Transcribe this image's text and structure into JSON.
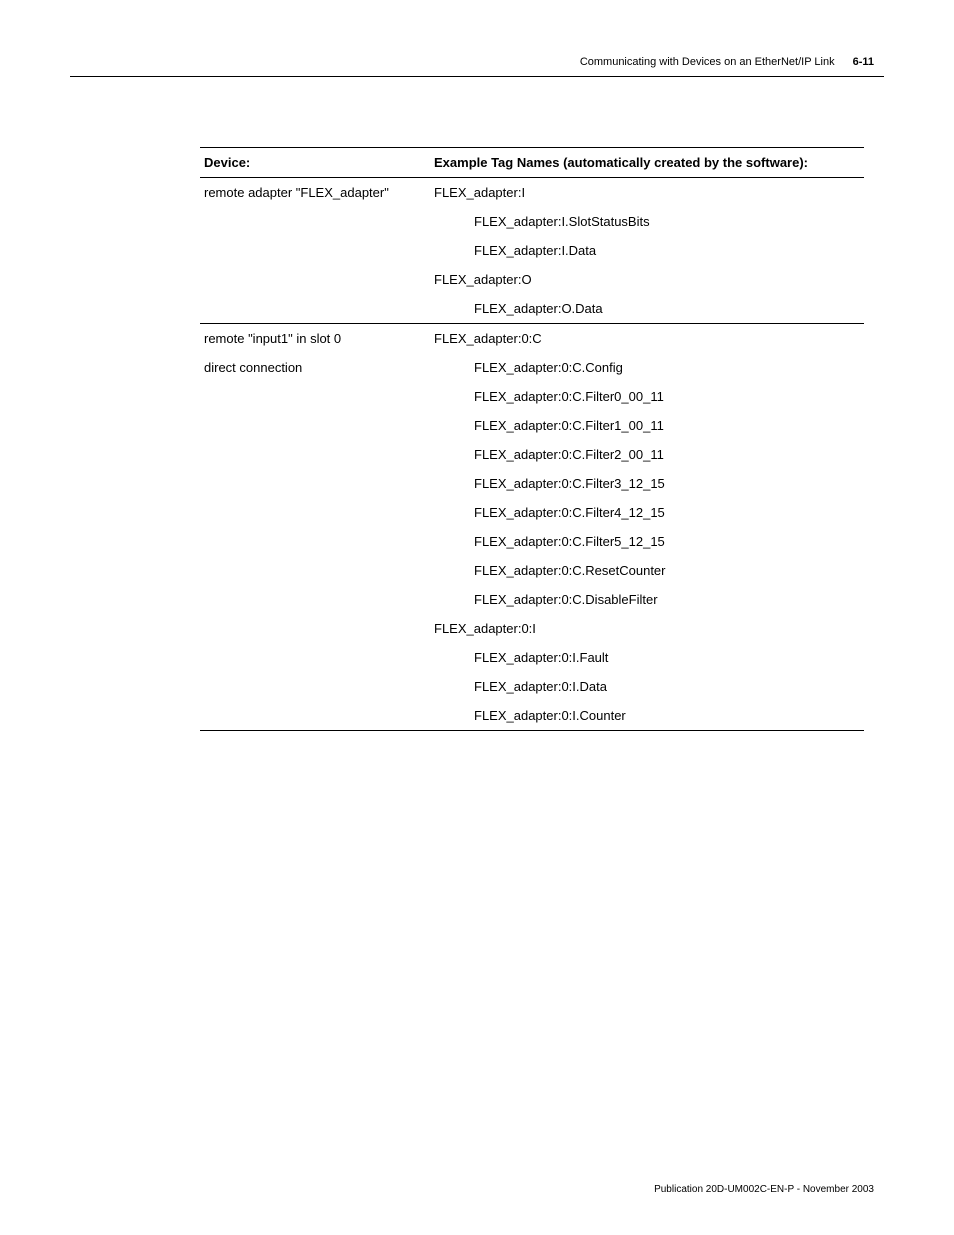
{
  "header": {
    "title": "Communicating with Devices on an EtherNet/IP Link",
    "page": "6-11"
  },
  "table": {
    "headers": {
      "device": "Device:",
      "tags": "Example Tag Names (automatically created by the software):"
    },
    "sections": [
      {
        "device_lines": [
          "remote adapter \"FLEX_adapter\""
        ],
        "tags": [
          {
            "text": "FLEX_adapter:I",
            "indent": 0
          },
          {
            "text": "FLEX_adapter:I.SlotStatusBits",
            "indent": 1
          },
          {
            "text": "FLEX_adapter:I.Data",
            "indent": 1
          },
          {
            "text": "FLEX_adapter:O",
            "indent": 0
          },
          {
            "text": "FLEX_adapter:O.Data",
            "indent": 1
          }
        ]
      },
      {
        "device_lines": [
          "remote \"input1\" in slot 0",
          "direct connection"
        ],
        "tags": [
          {
            "text": "FLEX_adapter:0:C",
            "indent": 0
          },
          {
            "text": "FLEX_adapter:0:C.Config",
            "indent": 1
          },
          {
            "text": "FLEX_adapter:0:C.Filter0_00_11",
            "indent": 1
          },
          {
            "text": "FLEX_adapter:0:C.Filter1_00_11",
            "indent": 1
          },
          {
            "text": "FLEX_adapter:0:C.Filter2_00_11",
            "indent": 1
          },
          {
            "text": "FLEX_adapter:0:C.Filter3_12_15",
            "indent": 1
          },
          {
            "text": "FLEX_adapter:0:C.Filter4_12_15",
            "indent": 1
          },
          {
            "text": "FLEX_adapter:0:C.Filter5_12_15",
            "indent": 1
          },
          {
            "text": "FLEX_adapter:0:C.ResetCounter",
            "indent": 1
          },
          {
            "text": "FLEX_adapter:0:C.DisableFilter",
            "indent": 1
          },
          {
            "text": "FLEX_adapter:0:I",
            "indent": 0
          },
          {
            "text": "FLEX_adapter:0:I.Fault",
            "indent": 1
          },
          {
            "text": "FLEX_adapter:0:I.Data",
            "indent": 1
          },
          {
            "text": "FLEX_adapter:0:I.Counter",
            "indent": 1
          }
        ]
      }
    ]
  },
  "footer": {
    "text": "Publication 20D-UM002C-EN-P - November 2003"
  }
}
